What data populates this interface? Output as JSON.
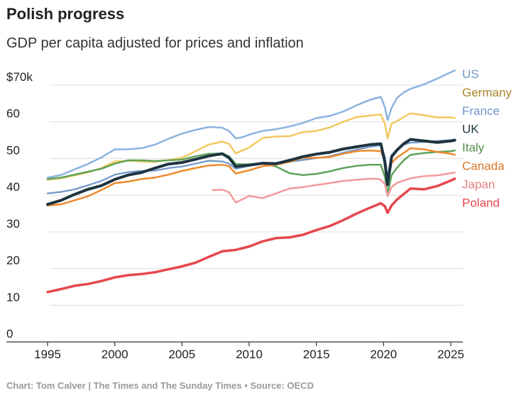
{
  "title": "Polish progress",
  "subtitle": "GDP per capita adjusted for prices and inflation",
  "footer": "Chart: Tom Calver | The Times and The Sunday Times • Source: OECD",
  "chart_data": {
    "type": "line",
    "title": "Polish progress",
    "subtitle": "GDP per capita adjusted for prices and inflation",
    "xlabel": "",
    "ylabel": "",
    "xlim": [
      1992.5,
      2026
    ],
    "ylim": [
      0,
      70
    ],
    "x_ticks": [
      "1995",
      "2000",
      "2005",
      "2010",
      "2015",
      "2020",
      "2025"
    ],
    "y_ticks": [
      {
        "value": 0,
        "label": "0"
      },
      {
        "value": 10,
        "label": "10"
      },
      {
        "value": 20,
        "label": "20"
      },
      {
        "value": 30,
        "label": "30"
      },
      {
        "value": 40,
        "label": "40"
      },
      {
        "value": 50,
        "label": "50"
      },
      {
        "value": 60,
        "label": "60"
      },
      {
        "value": 70,
        "label": "$70k"
      }
    ],
    "grid": "horizontal",
    "legend": "right, labels at line ends",
    "series": [
      {
        "name": "US",
        "color": "#8cb3e0",
        "width": 2.5,
        "points": [
          [
            1995,
            44.8
          ],
          [
            1996,
            45.5
          ],
          [
            1997,
            47
          ],
          [
            1998,
            48.5
          ],
          [
            1999,
            50.3
          ],
          [
            2000,
            52.5
          ],
          [
            2001,
            52.5
          ],
          [
            2002,
            52.8
          ],
          [
            2003,
            53.8
          ],
          [
            2004,
            55.4
          ],
          [
            2005,
            56.8
          ],
          [
            2006,
            57.8
          ],
          [
            2007,
            58.6
          ],
          [
            2008,
            58.4
          ],
          [
            2008.5,
            57.5
          ],
          [
            2009,
            55.5
          ],
          [
            2009.5,
            55.8
          ],
          [
            2010,
            56.5
          ],
          [
            2011,
            57.5
          ],
          [
            2012,
            58
          ],
          [
            2013,
            58.7
          ],
          [
            2014,
            59.7
          ],
          [
            2015,
            61
          ],
          [
            2016,
            61.6
          ],
          [
            2017,
            62.8
          ],
          [
            2018,
            64.5
          ],
          [
            2019,
            66
          ],
          [
            2019.8,
            66.8
          ],
          [
            2020.1,
            64
          ],
          [
            2020.3,
            60.5
          ],
          [
            2020.6,
            63.8
          ],
          [
            2021,
            66.5
          ],
          [
            2021.5,
            68
          ],
          [
            2022,
            69
          ],
          [
            2023,
            70.2
          ],
          [
            2024,
            71.8
          ],
          [
            2025,
            73.5
          ],
          [
            2025.3,
            74
          ]
        ]
      },
      {
        "name": "Germany",
        "color": "#f2c960",
        "width": 2.5,
        "points": [
          [
            1995,
            44.2
          ],
          [
            1996,
            44.6
          ],
          [
            1997,
            45.4
          ],
          [
            1998,
            46.2
          ],
          [
            1999,
            47.4
          ],
          [
            2000,
            49.2
          ],
          [
            2001,
            49.4
          ],
          [
            2002,
            49.2
          ],
          [
            2003,
            49.1
          ],
          [
            2004,
            49.6
          ],
          [
            2005,
            50.2
          ],
          [
            2006,
            52
          ],
          [
            2007,
            53.8
          ],
          [
            2008,
            54.6
          ],
          [
            2008.5,
            54
          ],
          [
            2009,
            51.4
          ],
          [
            2010,
            53
          ],
          [
            2011,
            55.6
          ],
          [
            2012,
            56
          ],
          [
            2013,
            56.1
          ],
          [
            2014,
            57.2
          ],
          [
            2015,
            57.5
          ],
          [
            2016,
            58.5
          ],
          [
            2017,
            60
          ],
          [
            2018,
            61.3
          ],
          [
            2019,
            61.7
          ],
          [
            2019.8,
            62
          ],
          [
            2020.1,
            59.5
          ],
          [
            2020.3,
            55.5
          ],
          [
            2020.6,
            59.5
          ],
          [
            2021,
            60.2
          ],
          [
            2021.5,
            61.3
          ],
          [
            2022,
            62.3
          ],
          [
            2023,
            61.8
          ],
          [
            2024,
            61.2
          ],
          [
            2025,
            61.2
          ],
          [
            2025.3,
            61
          ]
        ]
      },
      {
        "name": "France",
        "color": "#6d97c7",
        "width": 2.2,
        "points": [
          [
            1995,
            40.5
          ],
          [
            1996,
            40.9
          ],
          [
            1997,
            41.6
          ],
          [
            1998,
            42.7
          ],
          [
            1999,
            43.9
          ],
          [
            2000,
            45.6
          ],
          [
            2001,
            46.3
          ],
          [
            2002,
            46.6
          ],
          [
            2003,
            46.7
          ],
          [
            2004,
            47.4
          ],
          [
            2005,
            47.8
          ],
          [
            2006,
            48.6
          ],
          [
            2007,
            49.4
          ],
          [
            2008,
            49.2
          ],
          [
            2008.5,
            48.6
          ],
          [
            2009,
            47.2
          ],
          [
            2010,
            48
          ],
          [
            2011,
            48.9
          ],
          [
            2012,
            48.8
          ],
          [
            2013,
            49.1
          ],
          [
            2014,
            49.6
          ],
          [
            2015,
            50.1
          ],
          [
            2016,
            50.6
          ],
          [
            2017,
            51.6
          ],
          [
            2018,
            52.4
          ],
          [
            2019,
            53.2
          ],
          [
            2019.8,
            53.6
          ],
          [
            2020.1,
            50.5
          ],
          [
            2020.3,
            45
          ],
          [
            2020.6,
            51
          ],
          [
            2021,
            52.3
          ],
          [
            2021.5,
            53.8
          ],
          [
            2022,
            54.3
          ],
          [
            2023,
            54.5
          ],
          [
            2024,
            54.8
          ],
          [
            2025,
            55
          ],
          [
            2025.3,
            55.2
          ]
        ]
      },
      {
        "name": "Italy",
        "color": "#5fa35a",
        "width": 2.5,
        "points": [
          [
            1995,
            44.4
          ],
          [
            1996,
            44.8
          ],
          [
            1997,
            45.6
          ],
          [
            1998,
            46.4
          ],
          [
            1999,
            47.2
          ],
          [
            2000,
            48.6
          ],
          [
            2001,
            49.5
          ],
          [
            2002,
            49.5
          ],
          [
            2003,
            49.3
          ],
          [
            2004,
            49.5
          ],
          [
            2005,
            49.7
          ],
          [
            2006,
            50.6
          ],
          [
            2007,
            51.3
          ],
          [
            2008,
            51.4
          ],
          [
            2008.5,
            50.6
          ],
          [
            2009,
            48.5
          ],
          [
            2010,
            48.4
          ],
          [
            2011,
            48.8
          ],
          [
            2012,
            47.8
          ],
          [
            2013,
            46
          ],
          [
            2014,
            45.5
          ],
          [
            2015,
            45.8
          ],
          [
            2016,
            46.5
          ],
          [
            2017,
            47.4
          ],
          [
            2018,
            48
          ],
          [
            2019,
            48.3
          ],
          [
            2019.8,
            48.3
          ],
          [
            2020.1,
            45
          ],
          [
            2020.3,
            40.2
          ],
          [
            2020.6,
            45.5
          ],
          [
            2021,
            47.5
          ],
          [
            2021.5,
            49.5
          ],
          [
            2022,
            51
          ],
          [
            2023,
            51.5
          ],
          [
            2024,
            51.8
          ],
          [
            2025,
            52
          ],
          [
            2025.3,
            52.2
          ]
        ]
      },
      {
        "name": "Canada",
        "color": "#ef8a2d",
        "width": 2.5,
        "points": [
          [
            1995,
            37.2
          ],
          [
            1996,
            37.5
          ],
          [
            1997,
            38.6
          ],
          [
            1998,
            39.7
          ],
          [
            1999,
            41.4
          ],
          [
            2000,
            43.3
          ],
          [
            2001,
            43.7
          ],
          [
            2002,
            44.4
          ],
          [
            2003,
            44.8
          ],
          [
            2004,
            45.6
          ],
          [
            2005,
            46.6
          ],
          [
            2006,
            47.4
          ],
          [
            2007,
            48.1
          ],
          [
            2008,
            48.3
          ],
          [
            2008.5,
            47.9
          ],
          [
            2009,
            45.9
          ],
          [
            2010,
            46.8
          ],
          [
            2011,
            47.9
          ],
          [
            2012,
            48.3
          ],
          [
            2013,
            49.1
          ],
          [
            2014,
            50.2
          ],
          [
            2015,
            50.2
          ],
          [
            2016,
            50.4
          ],
          [
            2017,
            51.3
          ],
          [
            2018,
            52
          ],
          [
            2019,
            52.2
          ],
          [
            2019.8,
            52
          ],
          [
            2020.1,
            49.5
          ],
          [
            2020.3,
            43.5
          ],
          [
            2020.6,
            48.8
          ],
          [
            2021,
            50.3
          ],
          [
            2021.5,
            51.5
          ],
          [
            2022,
            52.8
          ],
          [
            2023,
            52.5
          ],
          [
            2024,
            51.8
          ],
          [
            2025,
            51.3
          ],
          [
            2025.3,
            51
          ]
        ]
      },
      {
        "name": "Japan",
        "color": "#f19a9c",
        "width": 2.5,
        "points": [
          [
            2007.3,
            41.4
          ],
          [
            2008,
            41.5
          ],
          [
            2008.5,
            40.8
          ],
          [
            2009,
            38
          ],
          [
            2010,
            39.8
          ],
          [
            2011,
            39.2
          ],
          [
            2012,
            40.5
          ],
          [
            2013,
            41.8
          ],
          [
            2014,
            42.2
          ],
          [
            2015,
            42.8
          ],
          [
            2016,
            43.3
          ],
          [
            2017,
            43.9
          ],
          [
            2018,
            44.2
          ],
          [
            2019,
            44.5
          ],
          [
            2019.7,
            44.4
          ],
          [
            2020.1,
            43
          ],
          [
            2020.3,
            39.8
          ],
          [
            2020.6,
            42.2
          ],
          [
            2021,
            43.4
          ],
          [
            2022,
            44.6
          ],
          [
            2023,
            45.2
          ],
          [
            2024,
            45.4
          ],
          [
            2025,
            46
          ],
          [
            2025.3,
            46.2
          ]
        ]
      },
      {
        "name": "UK",
        "color": "#1e3440",
        "width": 4,
        "points": [
          [
            1995,
            37.5
          ],
          [
            1996,
            38.6
          ],
          [
            1997,
            40.2
          ],
          [
            1998,
            41.6
          ],
          [
            1999,
            42.6
          ],
          [
            2000,
            44.3
          ],
          [
            2001,
            45.5
          ],
          [
            2002,
            46.2
          ],
          [
            2003,
            47.4
          ],
          [
            2004,
            48.5
          ],
          [
            2005,
            48.9
          ],
          [
            2006,
            49.8
          ],
          [
            2007,
            50.7
          ],
          [
            2008,
            51.3
          ],
          [
            2008.5,
            50.2
          ],
          [
            2009,
            47.8
          ],
          [
            2010,
            48.2
          ],
          [
            2011,
            48.7
          ],
          [
            2012,
            48.6
          ],
          [
            2013,
            49.5
          ],
          [
            2014,
            50.5
          ],
          [
            2015,
            51.2
          ],
          [
            2016,
            51.7
          ],
          [
            2017,
            52.6
          ],
          [
            2018,
            53.2
          ],
          [
            2019,
            53.8
          ],
          [
            2019.8,
            54
          ],
          [
            2020.1,
            49
          ],
          [
            2020.3,
            42.8
          ],
          [
            2020.6,
            50.5
          ],
          [
            2021,
            52.3
          ],
          [
            2021.5,
            54
          ],
          [
            2022,
            55.2
          ],
          [
            2023,
            54.8
          ],
          [
            2024,
            54.4
          ],
          [
            2025,
            54.8
          ],
          [
            2025.3,
            55
          ]
        ]
      },
      {
        "name": "Poland",
        "color": "#e5474e",
        "width": 3.5,
        "points": [
          [
            1995,
            13.6
          ],
          [
            1996,
            14.4
          ],
          [
            1997,
            15.3
          ],
          [
            1998,
            15.8
          ],
          [
            1999,
            16.6
          ],
          [
            2000,
            17.6
          ],
          [
            2001,
            18.2
          ],
          [
            2002,
            18.5
          ],
          [
            2003,
            19
          ],
          [
            2004,
            19.8
          ],
          [
            2005,
            20.6
          ],
          [
            2006,
            21.6
          ],
          [
            2007,
            23.2
          ],
          [
            2008,
            24.7
          ],
          [
            2009,
            25.1
          ],
          [
            2010,
            26
          ],
          [
            2011,
            27.4
          ],
          [
            2012,
            28.3
          ],
          [
            2013,
            28.5
          ],
          [
            2014,
            29.2
          ],
          [
            2015,
            30.5
          ],
          [
            2016,
            31.6
          ],
          [
            2017,
            33.2
          ],
          [
            2018,
            35
          ],
          [
            2019,
            36.6
          ],
          [
            2019.8,
            37.8
          ],
          [
            2020.1,
            37
          ],
          [
            2020.3,
            35.2
          ],
          [
            2020.6,
            37.2
          ],
          [
            2021,
            38.8
          ],
          [
            2021.5,
            40.3
          ],
          [
            2022,
            41.8
          ],
          [
            2023,
            41.6
          ],
          [
            2024,
            42.5
          ],
          [
            2025,
            44
          ],
          [
            2025.3,
            44.5
          ]
        ]
      }
    ],
    "legend_entries": [
      {
        "name": "US",
        "color": "#6d97c7"
      },
      {
        "name": "Germany",
        "color": "#a7862b"
      },
      {
        "name": "France",
        "color": "#6d97c7"
      },
      {
        "name": "UK",
        "color": "#1e3440"
      },
      {
        "name": "Italy",
        "color": "#4f8f45"
      },
      {
        "name": "Canada",
        "color": "#d9772a"
      },
      {
        "name": "Japan",
        "color": "#e07f83"
      },
      {
        "name": "Poland",
        "color": "#e5474e"
      }
    ]
  }
}
